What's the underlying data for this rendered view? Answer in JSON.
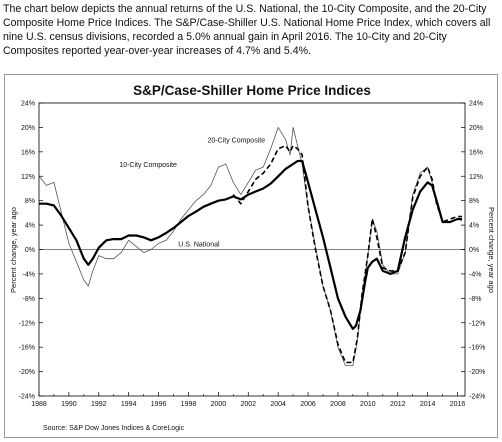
{
  "intro_text": "The chart below depicts the annual returns of the U.S. National, the 10-City Composite, and the 20-City Composite Home Price Indices. The S&P/Case-Shiller U.S. National Home Price Index, which covers all nine U.S. census divisions, recorded a 5.0% annual gain in April 2016. The 10-City and 20-City Composites reported year-over-year increases of 4.7% and 5.4%.",
  "chart_data": {
    "type": "line",
    "title": "S&P/Case-Shiller Home Price Indices",
    "ylabel_left": "Percent change, year ago",
    "ylabel_right": "Percent change, year ago",
    "source": "Source: S&P Dow Jones Indices & CoreLogic",
    "xlim": [
      1988,
      2016.5
    ],
    "ylim": [
      -24,
      24
    ],
    "x_ticks": [
      "1988",
      "1990",
      "1992",
      "1994",
      "1996",
      "1998",
      "2000",
      "2002",
      "2004",
      "2006",
      "2008",
      "2010",
      "2012",
      "2014",
      "2016"
    ],
    "y_ticks_left": [
      "24%",
      "20%",
      "16%",
      "12%",
      "8%",
      "4%",
      "0%",
      "-4%",
      "-8%",
      "-12%",
      "-16%",
      "-20%",
      "-24%"
    ],
    "y_ticks_right": [
      "24%",
      "20%",
      "16%",
      "12%",
      "8%",
      "4%",
      "0%",
      "-4%",
      "-8%",
      "-12%",
      "-16%",
      "-20%",
      "-24%"
    ],
    "grid": false,
    "colors": {
      "national": "#000000",
      "city10": "#555555",
      "city20": "#000000",
      "frame": "#9a9a9a"
    },
    "annotations": [
      {
        "text": "20-City Composite",
        "x": 2001.2,
        "y": 17.5
      },
      {
        "text": "10-City Composite",
        "x": 1995.3,
        "y": 13.5
      },
      {
        "text": "U.S. National",
        "x": 1998.7,
        "y": 0.5
      }
    ],
    "series": [
      {
        "name": "U.S. National",
        "style": "thick",
        "x": [
          1988,
          1988.5,
          1989,
          1989.5,
          1990,
          1990.5,
          1991,
          1991.3,
          1991.6,
          1992,
          1992.5,
          1993,
          1993.5,
          1994,
          1994.5,
          1995,
          1995.5,
          1996,
          1996.5,
          1997,
          1997.5,
          1998,
          1998.5,
          1999,
          1999.5,
          2000,
          2000.5,
          2001,
          2001.5,
          2002,
          2002.5,
          2003,
          2003.5,
          2004,
          2004.5,
          2005,
          2005.3,
          2005.6,
          2006,
          2006.5,
          2007,
          2007.5,
          2008,
          2008.5,
          2009,
          2009.2,
          2009.5,
          2009.8,
          2010,
          2010.3,
          2010.6,
          2011,
          2011.5,
          2012,
          2012.5,
          2013,
          2013.5,
          2014,
          2014.3,
          2014.6,
          2015,
          2015.5,
          2016,
          2016.3
        ],
        "y": [
          7.5,
          7.5,
          7.2,
          5.5,
          3.5,
          1.5,
          -1.5,
          -2.5,
          -1.5,
          0.3,
          1.5,
          1.7,
          1.7,
          2.3,
          2.3,
          2.0,
          1.5,
          2.0,
          2.7,
          3.5,
          4.5,
          5.5,
          6.2,
          7.0,
          7.5,
          8.0,
          8.2,
          8.7,
          8.2,
          9.0,
          9.5,
          10.0,
          10.8,
          12.0,
          13.2,
          14.0,
          14.5,
          14.5,
          11.0,
          6.5,
          2.0,
          -3.0,
          -8.0,
          -11.0,
          -13.0,
          -12.5,
          -10.0,
          -5.5,
          -3.0,
          -2.0,
          -1.5,
          -3.5,
          -4.0,
          -3.5,
          2.0,
          6.5,
          9.5,
          11.0,
          10.5,
          8.0,
          4.5,
          4.5,
          5.0,
          5.0
        ]
      },
      {
        "name": "10-City Composite",
        "style": "thin",
        "x": [
          1988,
          1988.5,
          1989,
          1989.5,
          1990,
          1990.5,
          1991,
          1991.3,
          1991.6,
          1992,
          1992.5,
          1993,
          1993.5,
          1994,
          1994.5,
          1995,
          1995.5,
          1996,
          1996.5,
          1997,
          1997.5,
          1998,
          1998.5,
          1999,
          1999.5,
          2000,
          2000.5,
          2001,
          2001.5,
          2002,
          2002.5,
          2003,
          2003.5,
          2004,
          2004.5,
          2004.8,
          2005,
          2005.3,
          2005.6,
          2006,
          2006.5,
          2007,
          2007.5,
          2008,
          2008.5,
          2009,
          2009.3,
          2009.6,
          2010,
          2010.3,
          2010.6,
          2011,
          2011.5,
          2012,
          2012.5,
          2013,
          2013.5,
          2014,
          2014.3,
          2014.6,
          2015,
          2015.5,
          2016,
          2016.3
        ],
        "y": [
          12.0,
          10.5,
          11.0,
          6.0,
          1.0,
          -2.0,
          -5.0,
          -6.0,
          -3.5,
          -1.0,
          -1.5,
          -1.5,
          -0.5,
          1.5,
          0.5,
          -0.5,
          0.0,
          1.0,
          1.5,
          3.0,
          5.0,
          6.5,
          8.0,
          9.0,
          10.5,
          13.5,
          14.0,
          11.0,
          9.0,
          11.0,
          13.0,
          13.5,
          16.5,
          20.0,
          18.0,
          15.5,
          20.0,
          17.0,
          14.0,
          7.0,
          0.5,
          -6.0,
          -10.0,
          -16.0,
          -19.0,
          -19.0,
          -15.0,
          -8.0,
          -1.0,
          5.0,
          3.0,
          -2.5,
          -4.0,
          -4.0,
          -0.5,
          9.0,
          12.5,
          13.5,
          11.0,
          7.5,
          4.5,
          4.5,
          5.0,
          4.7
        ]
      },
      {
        "name": "20-City Composite",
        "style": "dashed",
        "x": [
          2001,
          2001.5,
          2002,
          2002.5,
          2003,
          2003.5,
          2004,
          2004.5,
          2004.8,
          2005,
          2005.3,
          2005.6,
          2006,
          2006.5,
          2007,
          2007.5,
          2008,
          2008.5,
          2009,
          2009.3,
          2009.6,
          2010,
          2010.3,
          2010.6,
          2011,
          2011.5,
          2012,
          2012.5,
          2013,
          2013.5,
          2014,
          2014.3,
          2014.6,
          2015,
          2015.5,
          2016,
          2016.3
        ],
        "y": [
          9.0,
          7.5,
          9.5,
          11.5,
          12.5,
          14.0,
          16.5,
          17.0,
          16.0,
          17.0,
          16.5,
          15.5,
          7.0,
          0.0,
          -6.0,
          -10.0,
          -15.5,
          -18.5,
          -18.5,
          -14.5,
          -7.5,
          -1.0,
          5.0,
          2.0,
          -3.0,
          -3.5,
          -3.5,
          -0.5,
          8.5,
          12.0,
          13.5,
          11.5,
          7.5,
          4.5,
          5.0,
          5.4,
          5.4
        ]
      }
    ]
  }
}
